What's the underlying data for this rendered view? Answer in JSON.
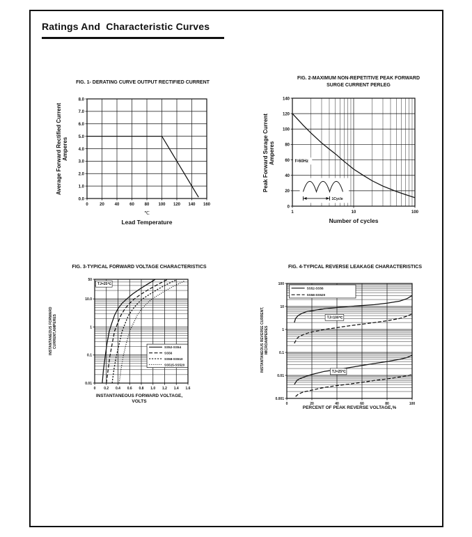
{
  "page": {
    "title": "Ratings And  Characteristic Curves"
  },
  "chart_data": [
    {
      "type": "line",
      "title": "FIG. 1- DERATING CURVE OUTPUT RECTIFIED CURRENT",
      "ylabel_line1": "Average Forward Rectified Current",
      "ylabel_line2": "Amperes",
      "x_unit": "℃",
      "xlabel": "Lead Temperature",
      "grid": "on",
      "x": {
        "scale": "linear",
        "min": 0,
        "max": 160,
        "ticks": [
          0,
          20,
          40,
          60,
          80,
          100,
          120,
          140,
          160
        ],
        "tick_labels": [
          "0",
          "20",
          "40",
          "60",
          "80",
          "100",
          "120",
          "140",
          "160"
        ]
      },
      "y": {
        "scale": "linear",
        "min": 0,
        "max": 8,
        "ticks": [
          0,
          1,
          2,
          3,
          4,
          5,
          6,
          7,
          8
        ],
        "tick_labels": [
          "0.0",
          "1.0",
          "2.0",
          "3.0",
          "4.0",
          "5.0",
          "6.0",
          "7.0",
          "8.0"
        ]
      },
      "series": [
        {
          "name": "derating-curve",
          "dash": "solid",
          "points": [
            [
              0,
              5
            ],
            [
              100,
              5
            ],
            [
              149,
              0.1
            ]
          ]
        }
      ]
    },
    {
      "type": "line",
      "title_line1": "FIG. 2-MAXIMUM NON-REPETITIVE PEAK FORWARD",
      "title_line2": "SURGE CURRENT PERLEG",
      "ylabel_line1": "Peak Forward Surage Current",
      "ylabel_line2": "Amperes",
      "xlabel": "Number of cycles",
      "grid": "on",
      "x": {
        "scale": "log",
        "min": 1,
        "max": 100,
        "ticks": [
          1,
          10,
          100
        ],
        "tick_labels": [
          "1",
          "10",
          "100"
        ]
      },
      "y": {
        "scale": "linear",
        "min": 0,
        "max": 140,
        "ticks": [
          0,
          20,
          40,
          60,
          80,
          100,
          120,
          140
        ],
        "tick_labels": [
          "0",
          "20",
          "40",
          "60",
          "80",
          "100",
          "120",
          "140"
        ]
      },
      "annotations": [
        {
          "text": "f=60Hz",
          "fx": 0.02,
          "fy": 0.595,
          "boxed": true,
          "border": false
        }
      ],
      "inset": {
        "label": "1Cycle",
        "fx": 0.06,
        "fy": 0.74,
        "fw": 0.4,
        "fh": 0.23
      },
      "series": [
        {
          "name": "surge-current",
          "dash": "solid",
          "points": [
            [
              1,
              120
            ],
            [
              1.5,
              105
            ],
            [
              2,
              95
            ],
            [
              3,
              82
            ],
            [
              4,
              74
            ],
            [
              5,
              68
            ],
            [
              7,
              58
            ],
            [
              10,
              48
            ],
            [
              15,
              39
            ],
            [
              20,
              33
            ],
            [
              30,
              26
            ],
            [
              40,
              22
            ],
            [
              50,
              19
            ],
            [
              70,
              15
            ],
            [
              100,
              11
            ]
          ]
        }
      ]
    },
    {
      "type": "line",
      "title": "FIG. 3-TYPICAL FORWARD VOLTAGE CHARACTERISTICS",
      "ylabel_line1": "INSTANTANEOUS FORWARD",
      "ylabel_line2": "CURRENT,AMPERES",
      "xlabel_line1": "INSTANTANEOUS FORWARD VOLTAGE,",
      "xlabel_line2": "VOLTS",
      "grid": "on",
      "x": {
        "scale": "linear",
        "min": 0,
        "max": 1.6,
        "ticks": [
          0,
          0.2,
          0.4,
          0.6,
          0.8,
          1.0,
          1.2,
          1.4,
          1.6
        ],
        "tick_labels": [
          "0",
          "0.2",
          "0.4",
          "0.6",
          "0.8",
          "1.0",
          "1.2",
          "1.4",
          "1.6"
        ]
      },
      "y": {
        "scale": "log",
        "min": 0.01,
        "max": 50,
        "ticks": [
          0.01,
          0.1,
          1,
          10,
          50
        ],
        "tick_labels": [
          "0.01",
          "0.1",
          "1",
          "10.0",
          "50"
        ]
      },
      "annotations": [
        {
          "text": "TJ=25℃",
          "fx": 0.03,
          "fy": 0.055,
          "boxed": true,
          "border": true
        }
      ],
      "legend": {
        "position": "bottom-right",
        "fx": 0.56,
        "fy": 0.625,
        "fw": 0.44,
        "fh": 0.225,
        "items": [
          {
            "label": "SS52-SS54",
            "dash": "solid"
          },
          {
            "label": "SS56",
            "dash": "dash"
          },
          {
            "label": "SS58-SS510",
            "dash": "densedash"
          },
          {
            "label": "SS515-SS520",
            "dash": "dot"
          }
        ]
      },
      "series": [
        {
          "name": "SS52-SS54",
          "dash": "solid",
          "points": [
            [
              0.13,
              0.01
            ],
            [
              0.15,
              0.03
            ],
            [
              0.18,
              0.09
            ],
            [
              0.21,
              0.25
            ],
            [
              0.25,
              0.7
            ],
            [
              0.29,
              1.3
            ],
            [
              0.34,
              2.6
            ],
            [
              0.4,
              4.5
            ],
            [
              0.47,
              7
            ],
            [
              0.55,
              10
            ],
            [
              0.65,
              15
            ],
            [
              0.78,
              23
            ],
            [
              0.9,
              33
            ],
            [
              1.0,
              44
            ],
            [
              1.04,
              50
            ]
          ]
        },
        {
          "name": "SS56",
          "dash": "dash",
          "points": [
            [
              0.2,
              0.01
            ],
            [
              0.23,
              0.03
            ],
            [
              0.26,
              0.09
            ],
            [
              0.3,
              0.25
            ],
            [
              0.34,
              0.7
            ],
            [
              0.39,
              1.3
            ],
            [
              0.45,
              2.6
            ],
            [
              0.52,
              4.5
            ],
            [
              0.6,
              7
            ],
            [
              0.68,
              10
            ],
            [
              0.8,
              15
            ],
            [
              0.93,
              22
            ],
            [
              1.06,
              31
            ],
            [
              1.18,
              42
            ],
            [
              1.24,
              48
            ]
          ]
        },
        {
          "name": "SS58-SS510",
          "dash": "densedash",
          "points": [
            [
              0.3,
              0.01
            ],
            [
              0.33,
              0.03
            ],
            [
              0.37,
              0.09
            ],
            [
              0.42,
              0.25
            ],
            [
              0.47,
              0.7
            ],
            [
              0.52,
              1.3
            ],
            [
              0.58,
              2.6
            ],
            [
              0.66,
              4.5
            ],
            [
              0.74,
              7
            ],
            [
              0.82,
              10
            ],
            [
              0.95,
              15
            ],
            [
              1.08,
              22
            ],
            [
              1.2,
              30
            ],
            [
              1.33,
              41
            ],
            [
              1.4,
              47
            ]
          ]
        },
        {
          "name": "SS515-SS520",
          "dash": "dot",
          "points": [
            [
              0.42,
              0.01
            ],
            [
              0.45,
              0.03
            ],
            [
              0.49,
              0.09
            ],
            [
              0.54,
              0.25
            ],
            [
              0.6,
              0.7
            ],
            [
              0.66,
              1.3
            ],
            [
              0.73,
              2.6
            ],
            [
              0.81,
              4.5
            ],
            [
              0.9,
              7
            ],
            [
              0.98,
              10
            ],
            [
              1.1,
              14
            ],
            [
              1.22,
              20
            ],
            [
              1.35,
              28
            ],
            [
              1.48,
              38
            ],
            [
              1.55,
              44
            ]
          ]
        }
      ]
    },
    {
      "type": "line",
      "title": "FIG. 4-TYPICAL REVERSE LEAKAGE CHARACTERISTICS",
      "ylabel_line1": "INSTANTANEOUS REVERSE CURRENT,",
      "ylabel_line2": "MICROAMPERES",
      "xlabel": "PERCENT OF PEAK REVERSE VOLTAGE,%",
      "grid": "on",
      "x": {
        "scale": "linear",
        "min": 0,
        "max": 100,
        "ticks": [
          0,
          20,
          40,
          60,
          80,
          100
        ],
        "tick_labels": [
          "0",
          "20",
          "40",
          "60",
          "80",
          "100"
        ]
      },
      "y": {
        "scale": "log",
        "min": 0.001,
        "max": 100,
        "ticks": [
          0.001,
          0.01,
          0.1,
          1,
          10,
          100
        ],
        "tick_labels": [
          "0.001",
          "0.01",
          "0.1",
          "1",
          "10",
          "100"
        ]
      },
      "legend": {
        "position": "top-left",
        "fx": 0.02,
        "fy": 0.012,
        "fw": 0.53,
        "fh": 0.115,
        "items": [
          {
            "label": "SS52-SS56",
            "dash": "solid"
          },
          {
            "label": "SS58-SS520",
            "dash": "dash"
          }
        ]
      },
      "annotations": [
        {
          "text": "TJ=100℃",
          "fx": 0.32,
          "fy": 0.305,
          "boxed": true,
          "border": true
        },
        {
          "text": "TJ=25℃",
          "fx": 0.36,
          "fy": 0.775,
          "boxed": true,
          "border": true
        }
      ],
      "series": [
        {
          "name": "SS52-SS56 TJ=100C",
          "dash": "solid",
          "points": [
            [
              6,
              2
            ],
            [
              7,
              3
            ],
            [
              9,
              4
            ],
            [
              12,
              5
            ],
            [
              16,
              6
            ],
            [
              20,
              6.5
            ],
            [
              30,
              8
            ],
            [
              40,
              9
            ],
            [
              50,
              10
            ],
            [
              60,
              11
            ],
            [
              70,
              12
            ],
            [
              80,
              14
            ],
            [
              90,
              17
            ],
            [
              96,
              22
            ],
            [
              100,
              30
            ]
          ]
        },
        {
          "name": "SS58-SS520 TJ=100C",
          "dash": "dash",
          "points": [
            [
              6,
              0.25
            ],
            [
              8,
              0.4
            ],
            [
              10,
              0.5
            ],
            [
              15,
              0.65
            ],
            [
              20,
              0.78
            ],
            [
              30,
              1.0
            ],
            [
              40,
              1.2
            ],
            [
              50,
              1.45
            ],
            [
              60,
              1.7
            ],
            [
              70,
              2.0
            ],
            [
              80,
              2.4
            ],
            [
              90,
              3.0
            ],
            [
              96,
              3.8
            ],
            [
              100,
              4.8
            ]
          ]
        },
        {
          "name": "SS52-SS56 TJ=25C",
          "dash": "solid",
          "points": [
            [
              6,
              0.004
            ],
            [
              8,
              0.006
            ],
            [
              10,
              0.007
            ],
            [
              15,
              0.009
            ],
            [
              20,
              0.011
            ],
            [
              30,
              0.015
            ],
            [
              40,
              0.018
            ],
            [
              50,
              0.022
            ],
            [
              60,
              0.027
            ],
            [
              70,
              0.033
            ],
            [
              80,
              0.04
            ],
            [
              90,
              0.05
            ],
            [
              96,
              0.06
            ],
            [
              100,
              0.075
            ]
          ]
        },
        {
          "name": "SS58-SS520 TJ=25C",
          "dash": "dash",
          "points": [
            [
              7,
              0.0012
            ],
            [
              9,
              0.0015
            ],
            [
              12,
              0.0018
            ],
            [
              15,
              0.002
            ],
            [
              20,
              0.0023
            ],
            [
              30,
              0.003
            ],
            [
              40,
              0.0036
            ],
            [
              50,
              0.0042
            ],
            [
              60,
              0.005
            ],
            [
              70,
              0.006
            ],
            [
              80,
              0.007
            ],
            [
              90,
              0.0085
            ],
            [
              96,
              0.0095
            ],
            [
              100,
              0.011
            ]
          ]
        }
      ]
    }
  ]
}
